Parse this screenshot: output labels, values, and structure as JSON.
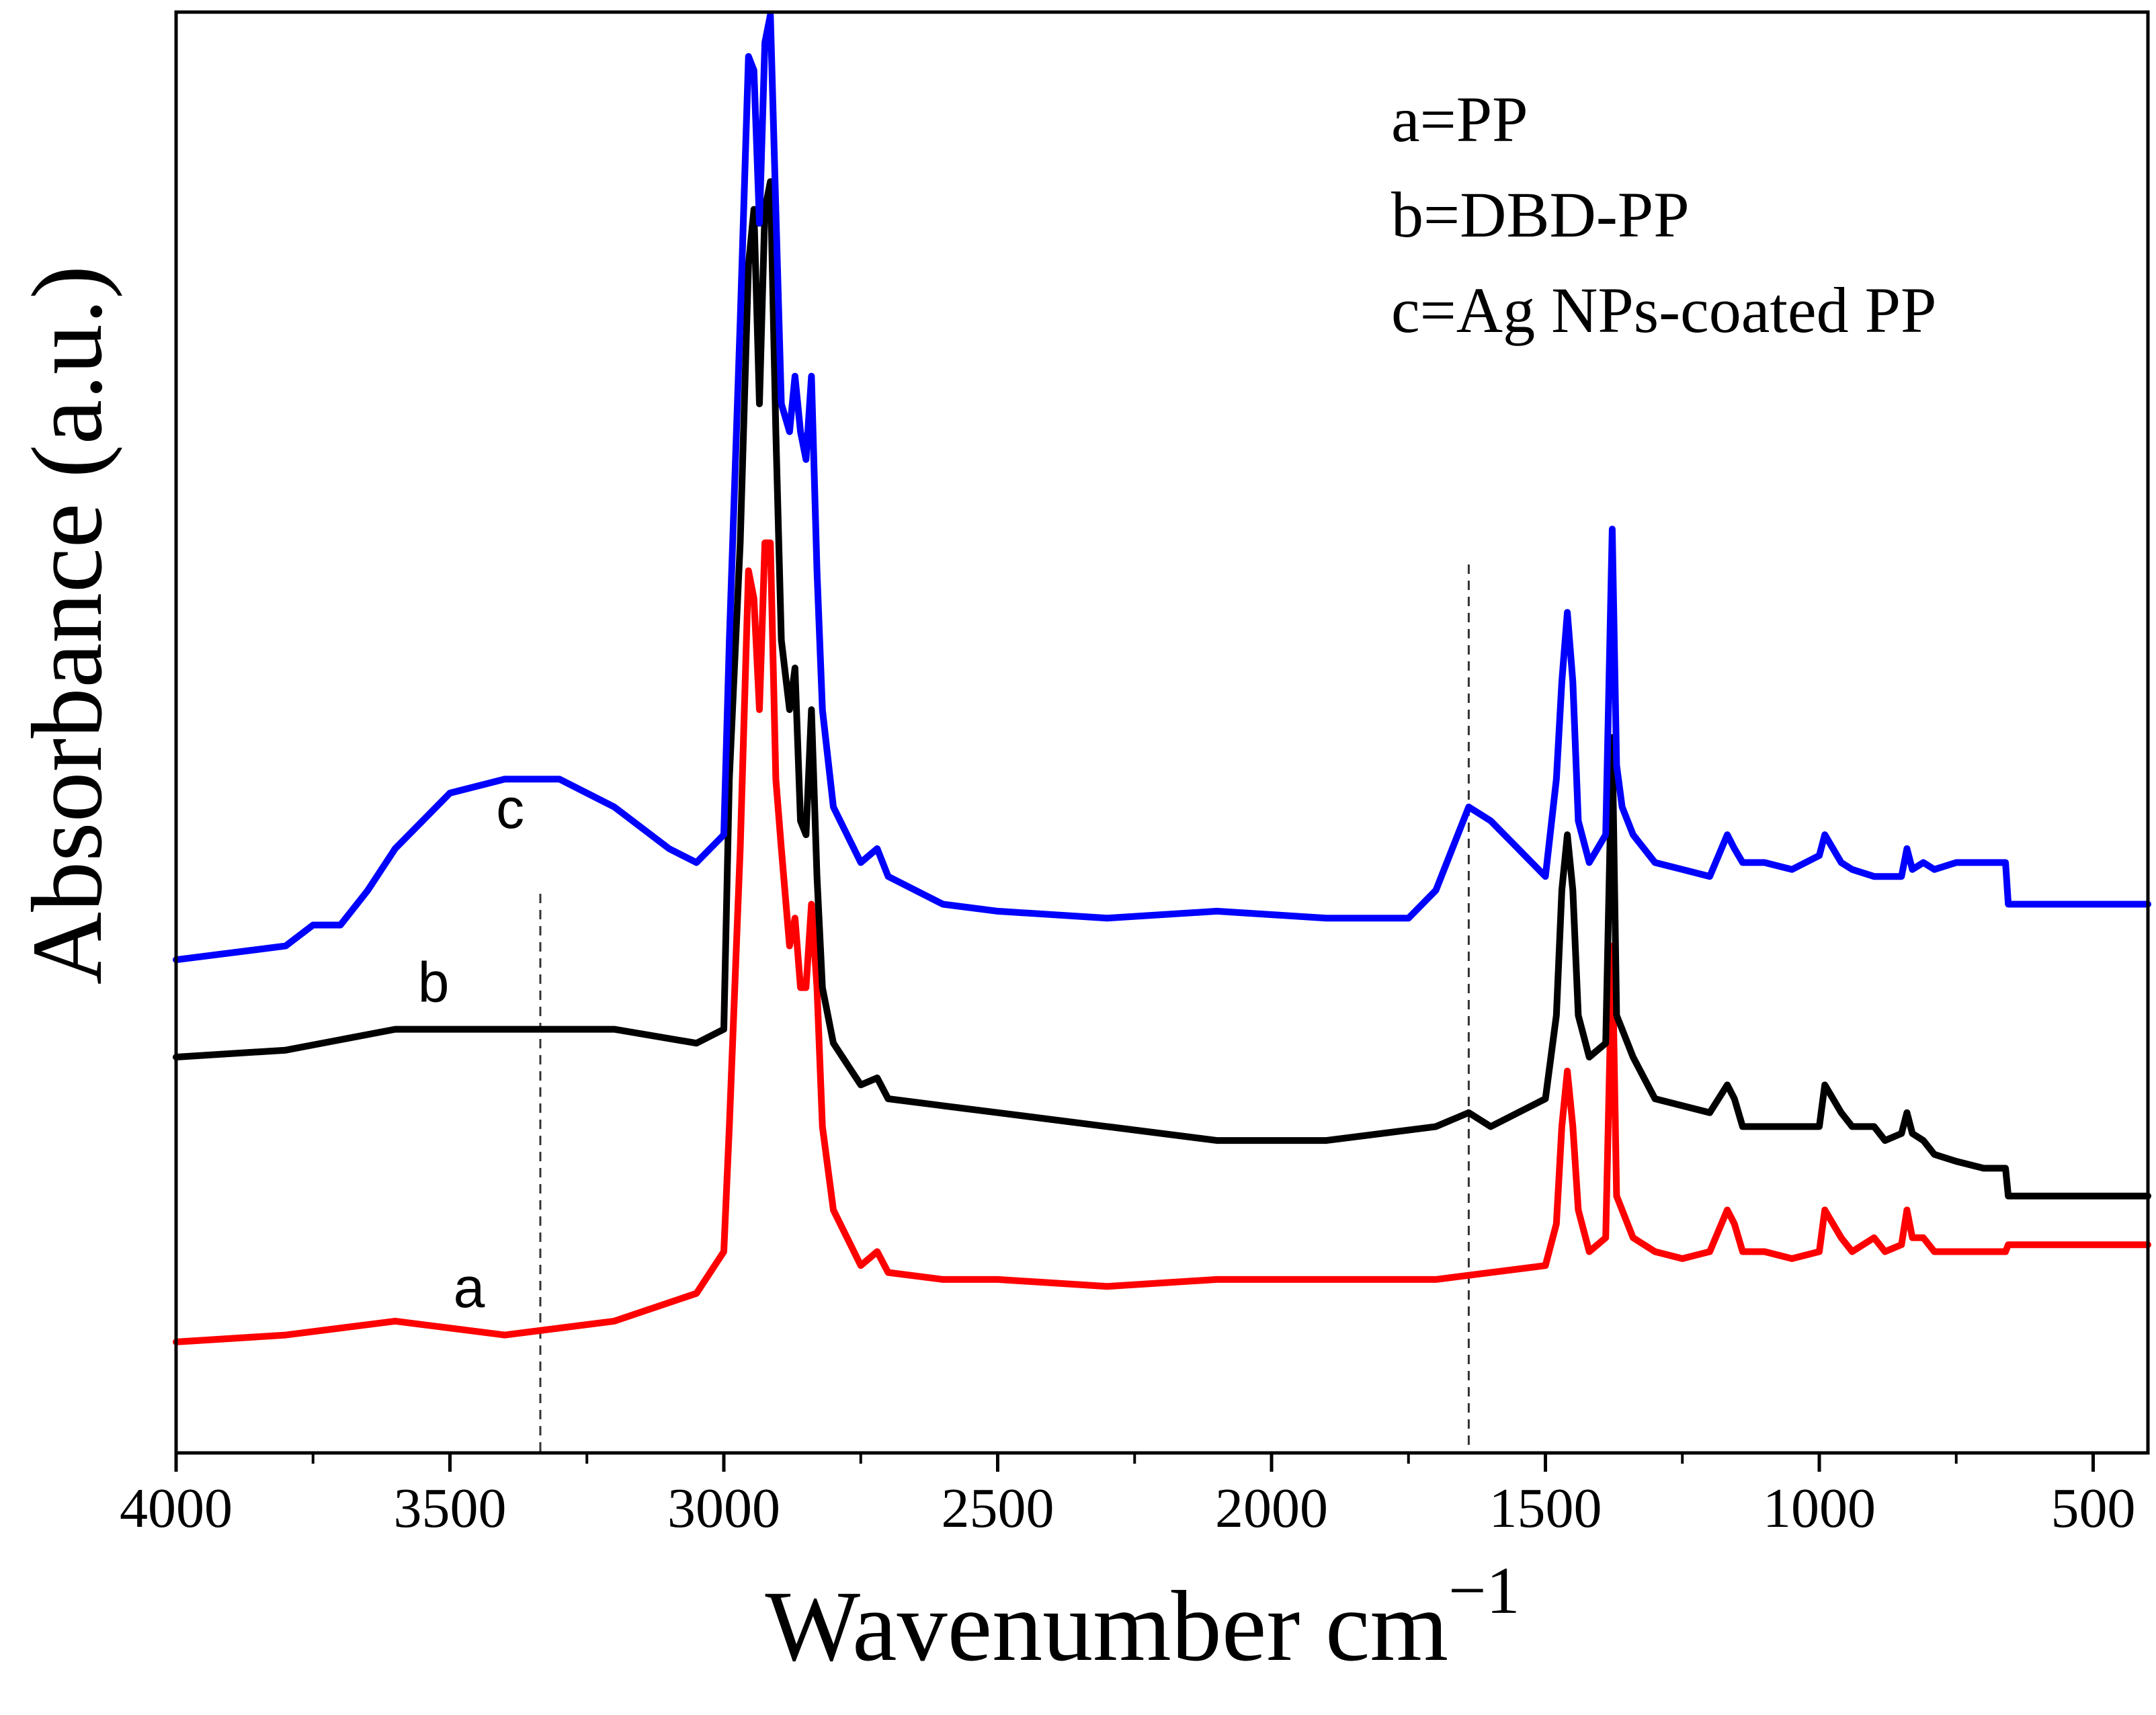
{
  "chart_data": {
    "type": "line",
    "xlabel": "Wavenumber cm",
    "xlabel_exponent": "−1",
    "ylabel": "Absorbance (a.u.)",
    "xlim": [
      4000,
      400
    ],
    "ylim": [
      0,
      1
    ],
    "x_ticks": [
      4000,
      3500,
      3000,
      2500,
      2000,
      1500,
      1000,
      500
    ],
    "x_tick_labels": [
      "4000",
      "3500",
      "3000",
      "2500",
      "2000",
      "1500",
      "1000",
      "500"
    ],
    "y_ticks_shown": false,
    "legend": [
      "a=PP",
      "b=DBD-PP",
      "c=Ag NPs-coated PP"
    ],
    "legend_position": "top-right",
    "reference_lines": [
      3335,
      1640
    ],
    "series": [
      {
        "name": "a",
        "label": "a",
        "color": "#ff0000",
        "x": [
          4000,
          3800,
          3600,
          3400,
          3200,
          3050,
          3000,
          2990,
          2970,
          2955,
          2945,
          2935,
          2925,
          2915,
          2905,
          2895,
          2880,
          2870,
          2860,
          2850,
          2840,
          2830,
          2820,
          2800,
          2750,
          2720,
          2700,
          2600,
          2500,
          2300,
          2100,
          1900,
          1700,
          1500,
          1480,
          1470,
          1460,
          1450,
          1440,
          1420,
          1390,
          1378,
          1370,
          1360,
          1340,
          1300,
          1250,
          1200,
          1168,
          1155,
          1140,
          1100,
          1050,
          1000,
          990,
          975,
          960,
          940,
          900,
          880,
          850,
          840,
          830,
          810,
          790,
          750,
          700,
          660,
          655,
          400
        ],
        "y": [
          0.045,
          0.05,
          0.06,
          0.05,
          0.06,
          0.08,
          0.11,
          0.2,
          0.4,
          0.6,
          0.58,
          0.5,
          0.62,
          0.62,
          0.45,
          0.4,
          0.33,
          0.35,
          0.3,
          0.3,
          0.36,
          0.3,
          0.2,
          0.14,
          0.1,
          0.11,
          0.095,
          0.09,
          0.09,
          0.085,
          0.09,
          0.09,
          0.09,
          0.1,
          0.13,
          0.2,
          0.24,
          0.2,
          0.14,
          0.11,
          0.12,
          0.33,
          0.15,
          0.14,
          0.12,
          0.11,
          0.105,
          0.11,
          0.14,
          0.13,
          0.11,
          0.11,
          0.105,
          0.11,
          0.14,
          0.13,
          0.12,
          0.11,
          0.12,
          0.11,
          0.115,
          0.14,
          0.12,
          0.12,
          0.11,
          0.11,
          0.11,
          0.11,
          0.115,
          0.115
        ]
      },
      {
        "name": "b",
        "label": "b",
        "color": "#000000",
        "x": [
          4000,
          3800,
          3600,
          3400,
          3200,
          3050,
          3000,
          2990,
          2970,
          2955,
          2945,
          2935,
          2925,
          2915,
          2905,
          2895,
          2880,
          2870,
          2860,
          2850,
          2840,
          2830,
          2820,
          2800,
          2750,
          2720,
          2700,
          2600,
          2500,
          2300,
          2100,
          1900,
          1700,
          1640,
          1600,
          1500,
          1480,
          1470,
          1460,
          1450,
          1440,
          1420,
          1390,
          1378,
          1370,
          1360,
          1340,
          1300,
          1250,
          1200,
          1168,
          1155,
          1140,
          1100,
          1050,
          1000,
          990,
          975,
          960,
          940,
          900,
          880,
          850,
          840,
          830,
          810,
          790,
          750,
          700,
          660,
          655,
          400
        ],
        "y": [
          0.25,
          0.255,
          0.27,
          0.27,
          0.27,
          0.26,
          0.27,
          0.45,
          0.62,
          0.82,
          0.86,
          0.72,
          0.86,
          0.88,
          0.7,
          0.55,
          0.5,
          0.53,
          0.42,
          0.41,
          0.5,
          0.38,
          0.3,
          0.26,
          0.23,
          0.235,
          0.22,
          0.215,
          0.21,
          0.2,
          0.19,
          0.19,
          0.2,
          0.21,
          0.2,
          0.22,
          0.28,
          0.37,
          0.41,
          0.37,
          0.28,
          0.25,
          0.26,
          0.48,
          0.28,
          0.27,
          0.25,
          0.22,
          0.215,
          0.21,
          0.23,
          0.22,
          0.2,
          0.2,
          0.2,
          0.2,
          0.23,
          0.22,
          0.21,
          0.2,
          0.2,
          0.19,
          0.195,
          0.21,
          0.195,
          0.19,
          0.18,
          0.175,
          0.17,
          0.17,
          0.15,
          0.15
        ]
      },
      {
        "name": "c",
        "label": "c",
        "color": "#0000ff",
        "x": [
          4000,
          3800,
          3750,
          3700,
          3650,
          3600,
          3500,
          3400,
          3300,
          3200,
          3100,
          3050,
          3000,
          2990,
          2970,
          2955,
          2945,
          2935,
          2925,
          2915,
          2905,
          2895,
          2880,
          2870,
          2860,
          2850,
          2840,
          2830,
          2820,
          2800,
          2750,
          2720,
          2700,
          2600,
          2500,
          2300,
          2100,
          1900,
          1750,
          1700,
          1660,
          1640,
          1600,
          1550,
          1500,
          1480,
          1470,
          1460,
          1450,
          1440,
          1420,
          1390,
          1378,
          1370,
          1360,
          1340,
          1300,
          1250,
          1200,
          1168,
          1155,
          1140,
          1100,
          1050,
          1000,
          990,
          975,
          960,
          940,
          900,
          880,
          850,
          840,
          830,
          810,
          790,
          750,
          700,
          660,
          655,
          400
        ],
        "y": [
          0.32,
          0.33,
          0.345,
          0.345,
          0.37,
          0.4,
          0.44,
          0.45,
          0.45,
          0.43,
          0.4,
          0.39,
          0.41,
          0.55,
          0.78,
          0.97,
          0.96,
          0.85,
          0.98,
          1.0,
          0.86,
          0.72,
          0.7,
          0.74,
          0.7,
          0.68,
          0.74,
          0.6,
          0.5,
          0.43,
          0.39,
          0.4,
          0.38,
          0.36,
          0.355,
          0.35,
          0.355,
          0.35,
          0.35,
          0.37,
          0.41,
          0.43,
          0.42,
          0.4,
          0.38,
          0.45,
          0.52,
          0.57,
          0.52,
          0.42,
          0.39,
          0.41,
          0.63,
          0.46,
          0.43,
          0.41,
          0.39,
          0.385,
          0.38,
          0.41,
          0.4,
          0.39,
          0.39,
          0.385,
          0.395,
          0.41,
          0.4,
          0.39,
          0.385,
          0.38,
          0.38,
          0.38,
          0.4,
          0.385,
          0.39,
          0.385,
          0.39,
          0.39,
          0.39,
          0.36,
          0.36
        ]
      }
    ]
  }
}
